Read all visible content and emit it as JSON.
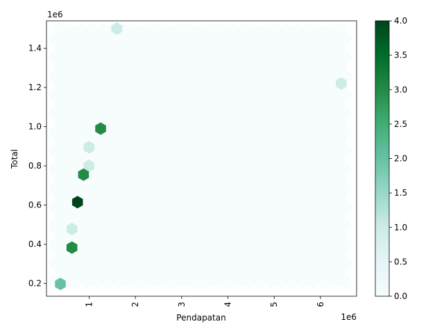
{
  "chart_data": {
    "type": "hexbin",
    "xlabel": "Pendapatan",
    "ylabel": "Total",
    "x_offset_text": "1e6",
    "y_offset_text": "1e6",
    "x_ticks": [
      {
        "value": 1000000,
        "label": "1"
      },
      {
        "value": 2000000,
        "label": "2"
      },
      {
        "value": 3000000,
        "label": "3"
      },
      {
        "value": 4000000,
        "label": "4"
      },
      {
        "value": 5000000,
        "label": "5"
      },
      {
        "value": 6000000,
        "label": "6"
      }
    ],
    "y_ticks": [
      {
        "value": 200000,
        "label": "0.2"
      },
      {
        "value": 400000,
        "label": "0.4"
      },
      {
        "value": 600000,
        "label": "0.6"
      },
      {
        "value": 800000,
        "label": "0.8"
      },
      {
        "value": 1000000,
        "label": "1.0"
      },
      {
        "value": 1200000,
        "label": "1.2"
      },
      {
        "value": 1400000,
        "label": "1.4"
      }
    ],
    "xlim": [
      80000,
      6780000
    ],
    "ylim": [
      135000,
      1540000
    ],
    "colormap": "BuGn",
    "colorbar": {
      "range": [
        0,
        4
      ],
      "ticks": [
        {
          "value": 0,
          "label": "0.0"
        },
        {
          "value": 0.5,
          "label": "0.5"
        },
        {
          "value": 1,
          "label": "1.0"
        },
        {
          "value": 1.5,
          "label": "1.5"
        },
        {
          "value": 2,
          "label": "2.0"
        },
        {
          "value": 2.5,
          "label": "2.5"
        },
        {
          "value": 3,
          "label": "3.0"
        },
        {
          "value": 3.5,
          "label": "3.5"
        },
        {
          "value": 4,
          "label": "4.0"
        }
      ]
    },
    "background_color": "#f7fcfd",
    "bins": [
      {
        "x": 1600000,
        "y": 1500000,
        "count": 1
      },
      {
        "x": 6450000,
        "y": 1220000,
        "count": 1
      },
      {
        "x": 1250000,
        "y": 990000,
        "count": 3
      },
      {
        "x": 1000000,
        "y": 895000,
        "count": 1
      },
      {
        "x": 1000000,
        "y": 800000,
        "count": 1
      },
      {
        "x": 880000,
        "y": 755000,
        "count": 3
      },
      {
        "x": 750000,
        "y": 615000,
        "count": 4
      },
      {
        "x": 630000,
        "y": 478000,
        "count": 1
      },
      {
        "x": 630000,
        "y": 383000,
        "count": 3
      },
      {
        "x": 380000,
        "y": 198000,
        "count": 2
      }
    ]
  }
}
